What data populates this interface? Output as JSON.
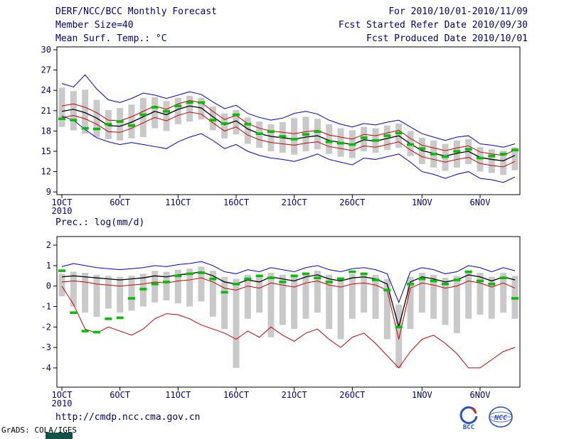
{
  "header": {
    "title": "DERF/NCC/BCC Monthly Forecast",
    "member_size": "Member Size=40",
    "temp_label": "Mean Surf. Temp.: °C",
    "for_range": "For 2010/10/01-2010/11/09",
    "fcst_started": "Fcst Started Refer Date 2010/09/30",
    "fcst_produced": "Fcst Produced Date 2010/10/01"
  },
  "precip_label": "Prec.: log(mm/d)",
  "footer": {
    "url": "http://cmdp.ncc.cma.gov.cn",
    "credit": "GrADS: COLA/IGES",
    "bcc_label": "BCC",
    "ncc_label": "NCC"
  },
  "colors": {
    "text": "#00007a",
    "axis": "#000000",
    "ensemble_envelope": "#0000cc",
    "ensemble_mean": "#000000",
    "spread_lines": "#cc0000",
    "observation": "#00c000",
    "member_bars": "#c9c9c9"
  },
  "chart_data": [
    {
      "type": "line",
      "title": "Mean Surf. Temp.: °C",
      "xlabel": "",
      "ylabel": "°C",
      "ylim": [
        9,
        30
      ],
      "yticks": [
        9,
        12,
        15,
        18,
        21,
        24,
        27,
        30
      ],
      "xticks": [
        {
          "i": 0,
          "label": "1OCT",
          "sub": "2010"
        },
        {
          "i": 5,
          "label": "6OCT"
        },
        {
          "i": 10,
          "label": "11OCT"
        },
        {
          "i": 15,
          "label": "16OCT"
        },
        {
          "i": 20,
          "label": "21OCT"
        },
        {
          "i": 25,
          "label": "26OCT"
        },
        {
          "i": 31,
          "label": "1NOV"
        },
        {
          "i": 36,
          "label": "6NOV"
        }
      ],
      "series": [
        {
          "name": "ensemble-max",
          "style": "line",
          "color": "#0000cc",
          "values": [
            25.0,
            24.5,
            26.3,
            24.2,
            22.6,
            22.2,
            22.8,
            23.6,
            23.3,
            22.8,
            23.3,
            23.8,
            23.4,
            22.3,
            21.3,
            21.8,
            20.6,
            20.0,
            19.6,
            19.9,
            20.6,
            20.9,
            20.5,
            19.6,
            19.0,
            18.6,
            19.1,
            18.9,
            19.3,
            19.6,
            18.6,
            17.6,
            17.1,
            16.6,
            17.1,
            17.3,
            16.1,
            15.9,
            15.6,
            16.1
          ]
        },
        {
          "name": "ensemble-min",
          "style": "line",
          "color": "#0000cc",
          "values": [
            20.2,
            19.6,
            18.2,
            17.0,
            16.4,
            16.0,
            16.3,
            16.0,
            15.7,
            15.4,
            16.4,
            17.1,
            17.6,
            16.6,
            15.4,
            16.0,
            15.0,
            14.4,
            14.0,
            13.8,
            13.5,
            14.0,
            14.6,
            13.8,
            13.4,
            13.0,
            14.0,
            13.8,
            14.2,
            14.6,
            13.4,
            12.0,
            11.6,
            11.0,
            11.6,
            12.0,
            11.0,
            10.8,
            10.4,
            11.2
          ]
        },
        {
          "name": "upper-spread",
          "style": "line",
          "color": "#cc0000",
          "values": [
            21.7,
            22.0,
            21.5,
            20.7,
            19.6,
            19.5,
            20.1,
            20.9,
            21.7,
            21.2,
            22.0,
            22.5,
            22.2,
            20.9,
            19.7,
            20.3,
            19.1,
            18.4,
            18.0,
            17.8,
            17.6,
            17.9,
            18.1,
            17.4,
            17.1,
            16.8,
            17.5,
            17.3,
            17.7,
            18.1,
            16.9,
            15.9,
            15.5,
            15.1,
            15.5,
            15.8,
            14.9,
            14.6,
            14.4,
            15.2
          ]
        },
        {
          "name": "lower-spread",
          "style": "line",
          "color": "#cc0000",
          "values": [
            20.0,
            20.3,
            19.8,
            19.0,
            17.9,
            17.8,
            18.4,
            19.2,
            20.0,
            19.5,
            20.3,
            20.8,
            20.5,
            19.2,
            18.0,
            18.6,
            17.4,
            16.7,
            16.3,
            16.1,
            15.9,
            16.2,
            16.4,
            15.7,
            15.4,
            15.1,
            15.8,
            15.6,
            16.0,
            16.4,
            15.2,
            14.2,
            13.8,
            13.4,
            13.8,
            14.1,
            13.2,
            12.9,
            12.7,
            13.5
          ]
        },
        {
          "name": "ensemble-mean",
          "style": "line",
          "color": "#000000",
          "width": 1.3,
          "values": [
            20.9,
            21.2,
            20.7,
            19.9,
            18.8,
            18.7,
            19.3,
            20.1,
            20.9,
            20.4,
            21.2,
            21.7,
            21.4,
            20.1,
            18.9,
            19.5,
            18.3,
            17.6,
            17.2,
            17.0,
            16.8,
            17.1,
            17.3,
            16.6,
            16.3,
            16.0,
            16.7,
            16.5,
            16.9,
            17.3,
            16.1,
            15.1,
            14.7,
            14.3,
            14.7,
            15.0,
            14.1,
            13.8,
            13.6,
            14.4
          ]
        },
        {
          "name": "observation",
          "style": "dash",
          "color": "#00c000",
          "values": [
            19.8,
            19.6,
            18.4,
            18.3,
            19.0,
            19.4,
            18.8,
            20.4,
            21.5,
            20.9,
            21.7,
            22.2,
            22.2,
            19.6,
            19.1,
            20.4,
            19.0,
            17.6,
            17.9,
            17.2,
            16.8,
            17.5,
            17.9,
            16.4,
            16.2,
            16.0,
            17.0,
            16.6,
            17.3,
            17.7,
            16.0,
            15.4,
            14.6,
            14.2,
            15.0,
            15.3,
            14.0,
            14.3,
            14.6,
            15.2
          ]
        }
      ],
      "bars": {
        "name": "member-spread-bars",
        "color": "#c9c9c9",
        "high": [
          24.4,
          23.9,
          24.1,
          22.6,
          21.1,
          21.4,
          21.9,
          22.9,
          23.0,
          22.4,
          22.9,
          23.2,
          22.9,
          21.6,
          20.6,
          21.1,
          20.0,
          19.4,
          19.0,
          19.3,
          19.9,
          20.1,
          19.8,
          19.0,
          18.4,
          18.1,
          18.6,
          18.4,
          18.8,
          19.1,
          18.0,
          17.0,
          16.6,
          16.1,
          16.6,
          16.8,
          15.6,
          15.3,
          15.1,
          15.6
        ],
        "low": [
          18.6,
          18.1,
          17.6,
          17.1,
          16.8,
          16.6,
          16.9,
          17.1,
          18.4,
          18.0,
          19.0,
          19.4,
          19.7,
          18.1,
          16.9,
          17.5,
          16.1,
          15.5,
          15.0,
          14.8,
          14.5,
          15.0,
          15.3,
          14.6,
          14.2,
          14.0,
          15.0,
          14.8,
          15.2,
          15.5,
          14.3,
          13.1,
          12.6,
          12.1,
          12.6,
          13.1,
          12.0,
          11.8,
          11.5,
          12.2
        ]
      }
    },
    {
      "type": "line",
      "title": "Prec.: log(mm/d)",
      "xlabel": "",
      "ylabel": "log(mm/d)",
      "ylim": [
        -4,
        2
      ],
      "yticks": [
        -4,
        -3,
        -2,
        -1,
        0,
        1,
        2
      ],
      "xticks": [
        {
          "i": 0,
          "label": "1OCT",
          "sub": "2010"
        },
        {
          "i": 5,
          "label": "6OCT"
        },
        {
          "i": 10,
          "label": "11OCT"
        },
        {
          "i": 15,
          "label": "16OCT"
        },
        {
          "i": 20,
          "label": "21OCT"
        },
        {
          "i": 25,
          "label": "26OCT"
        },
        {
          "i": 31,
          "label": "1NOV"
        },
        {
          "i": 36,
          "label": "6NOV"
        }
      ],
      "series": [
        {
          "name": "ensemble-max",
          "style": "line",
          "color": "#0000cc",
          "values": [
            0.95,
            1.1,
            1.0,
            0.9,
            0.85,
            0.8,
            0.85,
            0.9,
            1.0,
            0.95,
            1.05,
            1.1,
            1.2,
            1.0,
            0.7,
            0.6,
            0.8,
            0.7,
            0.9,
            0.8,
            0.7,
            0.9,
            1.0,
            0.8,
            0.7,
            0.85,
            0.9,
            0.8,
            0.6,
            -0.8,
            0.7,
            0.9,
            0.8,
            0.6,
            0.7,
            1.0,
            0.9,
            0.7,
            0.9,
            0.75
          ]
        },
        {
          "name": "upper-spread",
          "style": "line",
          "color": "#cc0000",
          "values": [
            0.2,
            0.25,
            0.2,
            0.1,
            0.05,
            0.0,
            0.05,
            0.1,
            0.2,
            0.15,
            0.25,
            0.3,
            0.4,
            0.2,
            -0.1,
            -0.2,
            0.0,
            -0.1,
            0.15,
            0.05,
            -0.05,
            0.15,
            0.25,
            0.05,
            -0.05,
            0.1,
            0.15,
            0.05,
            -0.2,
            -2.6,
            -0.1,
            0.15,
            0.05,
            -0.1,
            0.0,
            0.25,
            0.15,
            -0.05,
            0.15,
            -0.1
          ]
        },
        {
          "name": "ensemble-min",
          "style": "line",
          "color": "#cc0000",
          "values": [
            0.0,
            -0.9,
            -2.1,
            -2.3,
            -2.0,
            -2.2,
            -2.4,
            -2.1,
            -1.6,
            -1.35,
            -1.4,
            -1.6,
            -1.9,
            -2.1,
            -2.3,
            -2.6,
            -2.2,
            -2.5,
            -2.0,
            -2.4,
            -2.7,
            -2.3,
            -2.1,
            -2.6,
            -3.0,
            -2.5,
            -2.3,
            -2.8,
            -3.4,
            -4.0,
            -3.2,
            -2.6,
            -2.4,
            -2.8,
            -3.3,
            -4.0,
            -4.0,
            -3.6,
            -3.2,
            -3.0
          ]
        },
        {
          "name": "ensemble-mean",
          "style": "line",
          "color": "#000000",
          "width": 1.3,
          "values": [
            0.45,
            0.5,
            0.45,
            0.4,
            0.35,
            0.3,
            0.35,
            0.4,
            0.5,
            0.45,
            0.55,
            0.6,
            0.7,
            0.5,
            0.2,
            0.1,
            0.3,
            0.2,
            0.45,
            0.35,
            0.25,
            0.45,
            0.55,
            0.35,
            0.25,
            0.4,
            0.45,
            0.35,
            0.1,
            -2.0,
            0.2,
            0.45,
            0.35,
            0.2,
            0.3,
            0.55,
            0.45,
            0.25,
            0.45,
            0.3
          ]
        },
        {
          "name": "observation",
          "style": "dash",
          "color": "#00c000",
          "values": [
            0.75,
            -1.3,
            -2.2,
            -2.25,
            -1.6,
            -1.55,
            -0.6,
            -0.15,
            0.1,
            0.2,
            0.5,
            0.6,
            0.65,
            0.35,
            -0.3,
            0.1,
            0.35,
            0.5,
            0.4,
            0.2,
            0.5,
            0.6,
            0.4,
            0.2,
            0.35,
            0.7,
            0.6,
            0.3,
            -0.2,
            -2.0,
            0.1,
            0.35,
            0.25,
            0.1,
            0.3,
            0.7,
            0.25,
            0.1,
            0.4,
            -0.6
          ]
        }
      ],
      "bars": {
        "name": "member-spread-bars",
        "color": "#c9c9c9",
        "high": [
          0.6,
          0.7,
          0.65,
          0.55,
          0.5,
          0.45,
          0.5,
          0.6,
          0.75,
          0.7,
          0.8,
          0.85,
          0.95,
          0.75,
          0.45,
          0.35,
          0.55,
          0.45,
          0.65,
          0.55,
          0.45,
          0.65,
          0.75,
          0.55,
          0.45,
          0.6,
          0.65,
          0.55,
          0.35,
          -0.9,
          0.45,
          0.65,
          0.55,
          0.4,
          0.5,
          0.75,
          0.65,
          0.45,
          0.65,
          0.5
        ],
        "low": [
          -0.5,
          -1.0,
          -1.3,
          -1.5,
          -1.1,
          -1.3,
          -1.2,
          -1.0,
          -0.8,
          -0.7,
          -0.85,
          -1.0,
          -0.75,
          -1.5,
          -2.1,
          -4.0,
          -1.6,
          -1.3,
          -2.5,
          -1.9,
          -2.1,
          -1.6,
          -1.3,
          -2.1,
          -2.6,
          -1.6,
          -1.3,
          -1.6,
          -2.6,
          -4.0,
          -2.1,
          -1.3,
          -1.6,
          -1.9,
          -2.3,
          -1.6,
          -1.4,
          -1.6,
          -1.3,
          -1.6
        ]
      }
    }
  ]
}
